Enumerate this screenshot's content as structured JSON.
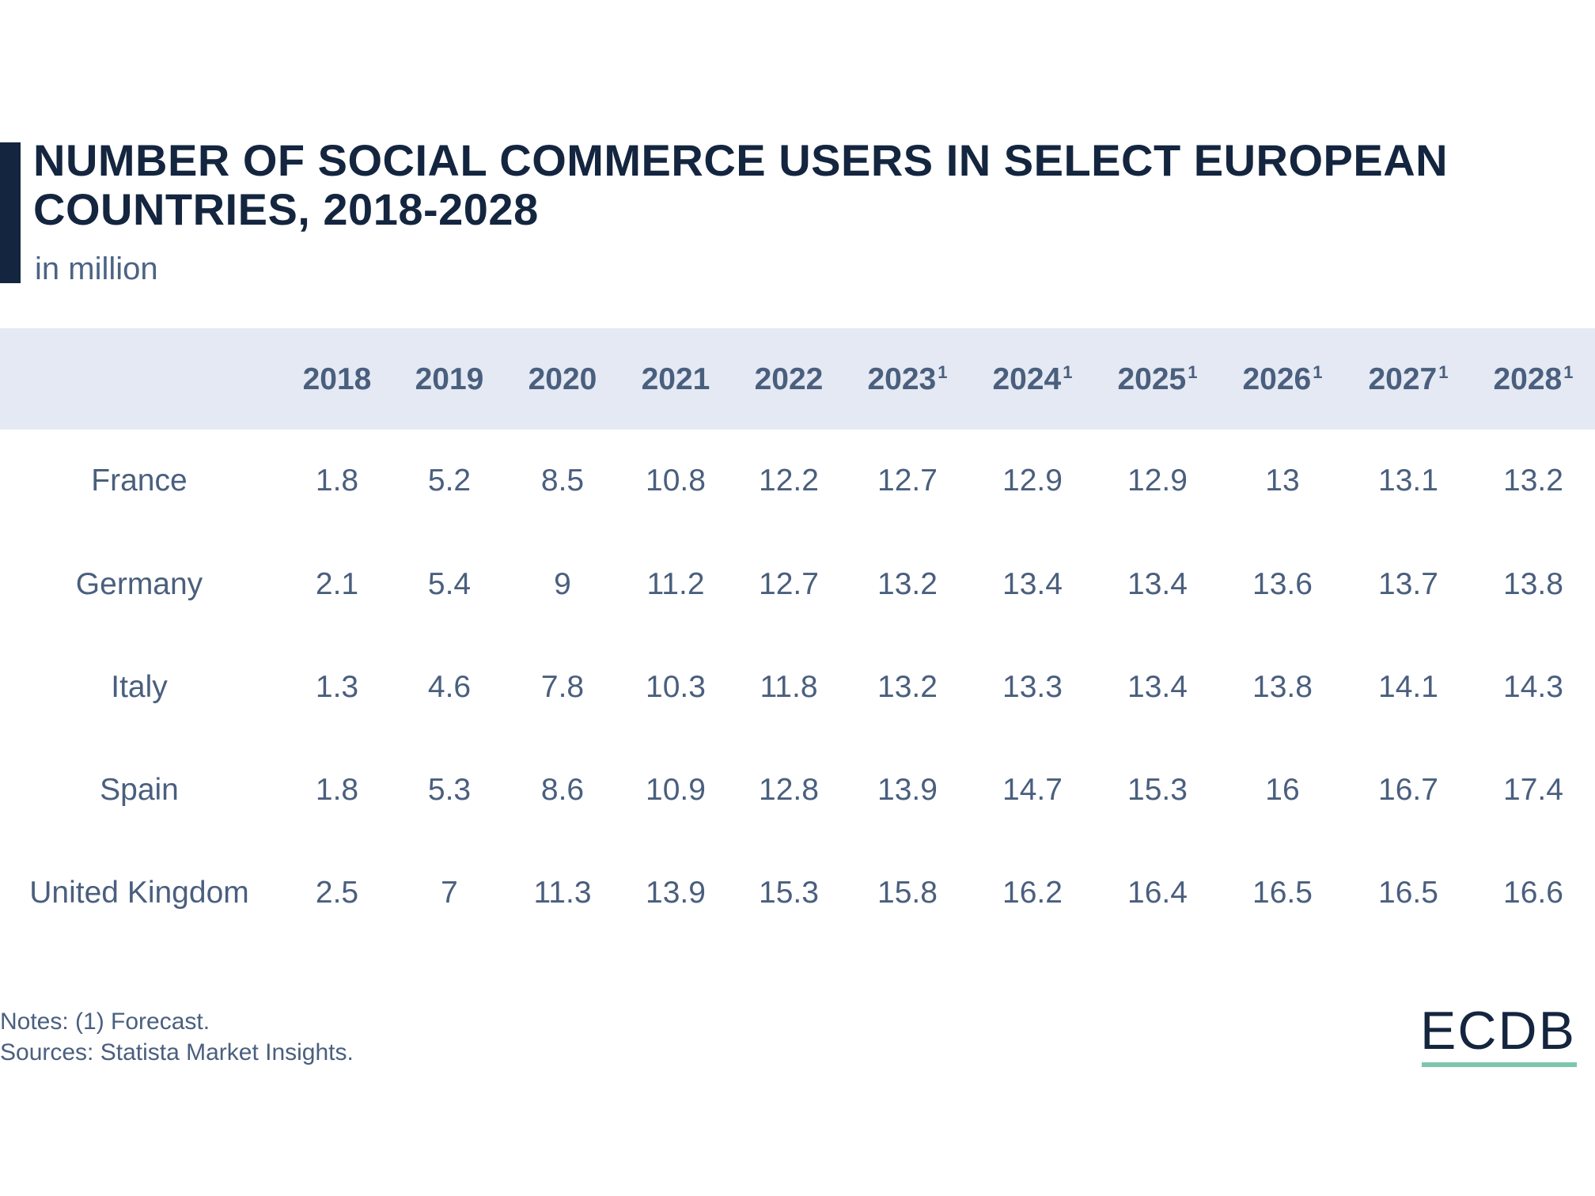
{
  "header": {
    "title": "NUMBER OF SOCIAL COMMERCE USERS IN SELECT EUROPEAN COUNTRIES, 2018-2028",
    "subtitle": "in million"
  },
  "chart_data": {
    "type": "table",
    "title": "NUMBER OF SOCIAL COMMERCE USERS IN SELECT EUROPEAN COUNTRIES, 2018-2028",
    "subtitle": "in million",
    "columns": [
      {
        "label": "2018",
        "sup": ""
      },
      {
        "label": "2019",
        "sup": ""
      },
      {
        "label": "2020",
        "sup": ""
      },
      {
        "label": "2021",
        "sup": ""
      },
      {
        "label": "2022",
        "sup": ""
      },
      {
        "label": "2023",
        "sup": "1"
      },
      {
        "label": "2024",
        "sup": "1"
      },
      {
        "label": "2025",
        "sup": "1"
      },
      {
        "label": "2026",
        "sup": "1"
      },
      {
        "label": "2027",
        "sup": "1"
      },
      {
        "label": "2028",
        "sup": "1"
      }
    ],
    "rows": [
      {
        "label": "France",
        "values": [
          "1.8",
          "5.2",
          "8.5",
          "10.8",
          "12.2",
          "12.7",
          "12.9",
          "12.9",
          "13",
          "13.1",
          "13.2"
        ]
      },
      {
        "label": "Germany",
        "values": [
          "2.1",
          "5.4",
          "9",
          "11.2",
          "12.7",
          "13.2",
          "13.4",
          "13.4",
          "13.6",
          "13.7",
          "13.8"
        ]
      },
      {
        "label": "Italy",
        "values": [
          "1.3",
          "4.6",
          "7.8",
          "10.3",
          "11.8",
          "13.2",
          "13.3",
          "13.4",
          "13.8",
          "14.1",
          "14.3"
        ]
      },
      {
        "label": "Spain",
        "values": [
          "1.8",
          "5.3",
          "8.6",
          "10.9",
          "12.8",
          "13.9",
          "14.7",
          "15.3",
          "16",
          "16.7",
          "17.4"
        ]
      },
      {
        "label": "United Kingdom",
        "values": [
          "2.5",
          "7",
          "11.3",
          "13.9",
          "15.3",
          "15.8",
          "16.2",
          "16.4",
          "16.5",
          "16.5",
          "16.6"
        ]
      }
    ],
    "header_background": "#e4e9f3"
  },
  "footer": {
    "notes": "Notes: (1) Forecast.",
    "sources": "Sources: Statista Market Insights.",
    "logo": "ECDB"
  },
  "colors": {
    "title": "#14253f",
    "text": "#4a5f7e",
    "logo_underline": "#7cc6b0"
  }
}
